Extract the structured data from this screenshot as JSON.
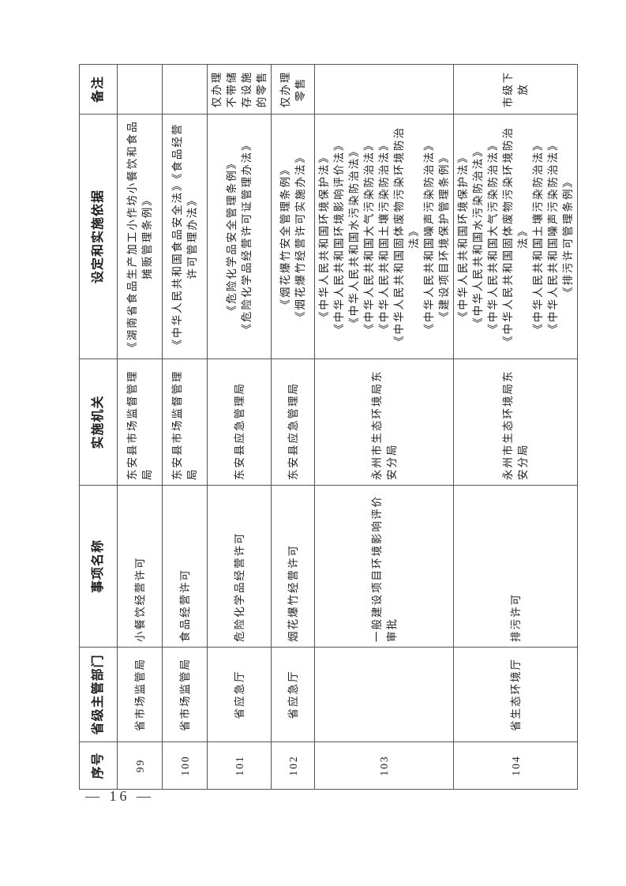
{
  "table": {
    "headers": [
      "序号",
      "省级主管部门",
      "事项名称",
      "实施机关",
      "设定和实施依据",
      "备注"
    ],
    "rows": [
      {
        "no": "99",
        "dept": "省市场监管局",
        "item": "小餐饮经营许可",
        "agency": "东安县市场监督管理局",
        "basis": [
          "《湖南省食品生产加工小作坊小餐饮和食品摊贩管理条例》"
        ],
        "note": ""
      },
      {
        "no": "100",
        "dept": "省市场监管局",
        "item": "食品经营许可",
        "agency": "东安县市场监督管理局",
        "basis": [
          "《中华人民共和国食品安全法》《食品经营许可管理办法》"
        ],
        "note": ""
      },
      {
        "no": "101",
        "dept": "省应急厅",
        "item": "危险化学品经营许可",
        "agency": "东安县应急管理局",
        "basis": [
          "《危险化学品安全管理条例》",
          "《危险化学品经营许可证管理办法》"
        ],
        "note": "仅办理不带储存设施的零售"
      },
      {
        "no": "102",
        "dept": "省应急厅",
        "item": "烟花爆竹经营许可",
        "agency": "东安县应急管理局",
        "basis": [
          "《烟花爆竹安全管理条例》",
          "《烟花爆竹经营许可实施办法》"
        ],
        "note": "仅办理零售"
      },
      {
        "no": "103",
        "dept": "",
        "item": "一般建设项目环境影响评价审批",
        "agency": "永州市生态环境局东安分局",
        "basis": [
          "《中华人民共和国环境保护法》",
          "《中华人民共和国环境影响评价法》",
          "《中华人民共和国水污染防治法》",
          "《中华人民共和国大气污染防治法》",
          "《中华人民共和国土壤污染防治法》",
          "《中华人民共和国固体废物污染环境防治法》",
          "《中华人民共和国噪声污染防治法》",
          "《建设项目环境保护管理条例》"
        ],
        "note": ""
      },
      {
        "no": "104",
        "dept": "省生态环境厅",
        "item": "排污许可",
        "agency": "永州市生态环境局东安分局",
        "basis": [
          "《中华人民共和国环境保护法》",
          "《中华人民共和国水污染防治法》",
          "《中华人民共和国大气污染防治法》",
          "《中华人民共和国固体废物污染环境防治法》",
          "《中华人民共和国土壤污染防治法》",
          "《中华人民共和国噪声污染防治法》",
          "《排污许可管理条例》"
        ],
        "note": "市级下放"
      }
    ]
  },
  "page_number": "— 16 —"
}
